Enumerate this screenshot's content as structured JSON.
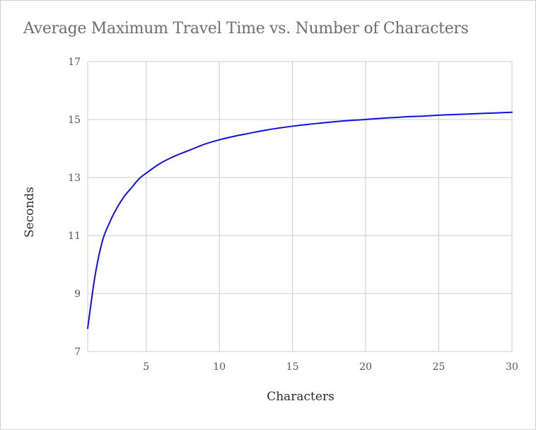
{
  "chart_data": {
    "type": "line",
    "title": "Average Maximum Travel Time vs. Number of Characters",
    "xlabel": "Characters",
    "ylabel": "Seconds",
    "xlim": [
      1,
      30
    ],
    "ylim": [
      7,
      17
    ],
    "xticks": [
      5,
      10,
      15,
      20,
      25,
      30
    ],
    "yticks": [
      7,
      9,
      11,
      13,
      15,
      17
    ],
    "grid": true,
    "legend": "none",
    "series": [
      {
        "color": "#1010e0",
        "x": [
          1,
          1.5,
          2,
          2.5,
          3,
          3.5,
          4,
          4.5,
          5,
          6,
          7,
          8,
          9,
          10,
          11,
          12,
          13,
          14,
          15,
          16,
          17,
          18,
          19,
          20,
          21,
          22,
          23,
          24,
          25,
          26,
          27,
          28,
          29,
          30
        ],
        "y": [
          7.8,
          9.6,
          10.8,
          11.45,
          11.95,
          12.35,
          12.65,
          12.95,
          13.15,
          13.5,
          13.75,
          13.95,
          14.15,
          14.3,
          14.42,
          14.52,
          14.62,
          14.7,
          14.77,
          14.83,
          14.88,
          14.93,
          14.97,
          15.0,
          15.04,
          15.07,
          15.1,
          15.12,
          15.15,
          15.17,
          15.19,
          15.21,
          15.23,
          15.25
        ]
      }
    ]
  }
}
